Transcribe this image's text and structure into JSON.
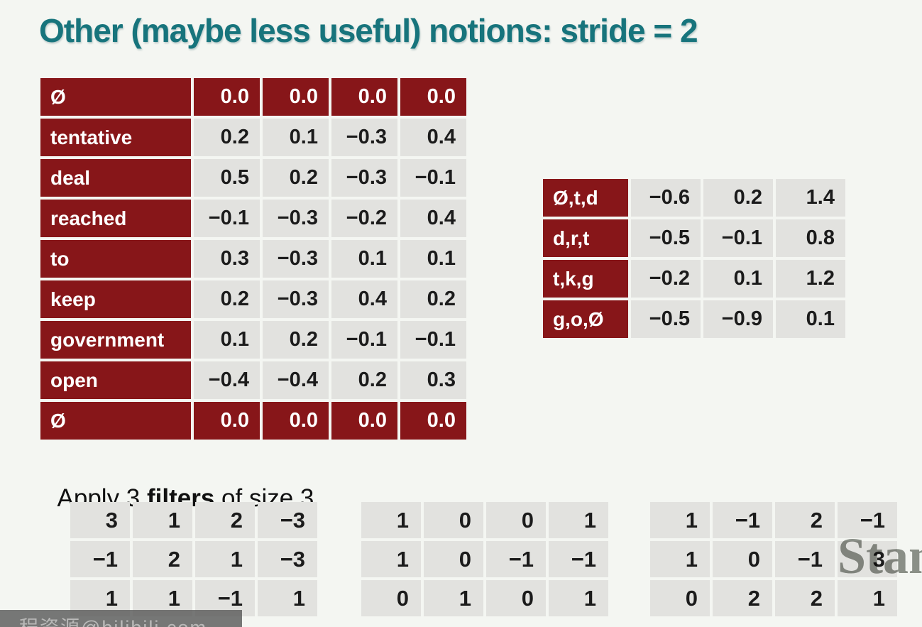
{
  "title": "Other (maybe less useful) notions: stride = 2",
  "word_table": {
    "rows": [
      {
        "label": "Ø",
        "header": true,
        "values": [
          "0.0",
          "0.0",
          "0.0",
          "0.0"
        ]
      },
      {
        "label": "tentative",
        "header": false,
        "values": [
          "0.2",
          "0.1",
          "−0.3",
          "0.4"
        ]
      },
      {
        "label": "deal",
        "header": false,
        "values": [
          "0.5",
          "0.2",
          "−0.3",
          "−0.1"
        ]
      },
      {
        "label": "reached",
        "header": false,
        "values": [
          "−0.1",
          "−0.3",
          "−0.2",
          "0.4"
        ]
      },
      {
        "label": "to",
        "header": false,
        "values": [
          "0.3",
          "−0.3",
          "0.1",
          "0.1"
        ]
      },
      {
        "label": "keep",
        "header": false,
        "values": [
          "0.2",
          "−0.3",
          "0.4",
          "0.2"
        ]
      },
      {
        "label": "government",
        "header": false,
        "values": [
          "0.1",
          "0.2",
          "−0.1",
          "−0.1"
        ]
      },
      {
        "label": "open",
        "header": false,
        "values": [
          "−0.4",
          "−0.4",
          "0.2",
          "0.3"
        ]
      },
      {
        "label": "Ø",
        "header": true,
        "values": [
          "0.0",
          "0.0",
          "0.0",
          "0.0"
        ]
      }
    ]
  },
  "stride_table": {
    "rows": [
      {
        "label": "Ø,t,d",
        "header": false,
        "values": [
          "−0.6",
          "0.2",
          "1.4"
        ]
      },
      {
        "label": "d,r,t",
        "header": false,
        "values": [
          "−0.5",
          "−0.1",
          "0.8"
        ]
      },
      {
        "label": "t,k,g",
        "header": false,
        "values": [
          "−0.2",
          "0.1",
          "1.2"
        ]
      },
      {
        "label": "g,o,Ø",
        "header": false,
        "values": [
          "−0.5",
          "−0.9",
          "0.1"
        ]
      }
    ]
  },
  "filters_heading": {
    "prefix": "Apply 3 ",
    "bold": "filters",
    "suffix": " of size 3"
  },
  "filters": [
    {
      "rows": [
        [
          "3",
          "1",
          "2",
          "−3"
        ],
        [
          "−1",
          "2",
          "1",
          "−3"
        ],
        [
          "1",
          "1",
          "−1",
          "1"
        ]
      ]
    },
    {
      "rows": [
        [
          "1",
          "0",
          "0",
          "1"
        ],
        [
          "1",
          "0",
          "−1",
          "−1"
        ],
        [
          "0",
          "1",
          "0",
          "1"
        ]
      ]
    },
    {
      "rows": [
        [
          "1",
          "−1",
          "2",
          "−1"
        ],
        [
          "1",
          "0",
          "−1",
          "3"
        ],
        [
          "0",
          "2",
          "2",
          "1"
        ]
      ]
    }
  ],
  "watermarks": {
    "stanford": "Stan",
    "bilibili": "程资源@bilibili.com"
  },
  "colors": {
    "title_teal": "#17747c",
    "maroon": "#871619",
    "cell_gray": "#e2e2df",
    "background": "#f4f6f2",
    "stanford_gray": "#90948e"
  }
}
